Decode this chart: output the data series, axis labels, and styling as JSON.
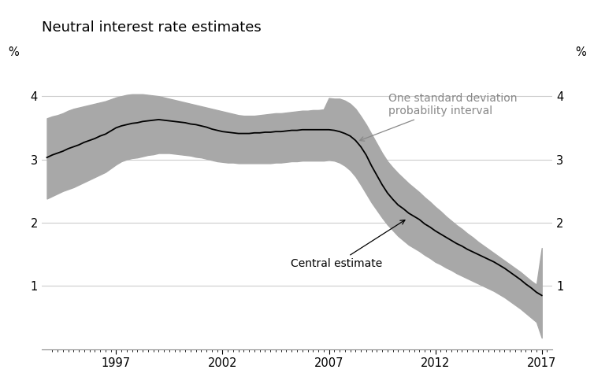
{
  "title": "Neutral interest rate estimates",
  "ylabel_left": "%",
  "ylabel_right": "%",
  "ylim": [
    0,
    4.6
  ],
  "yticks": [
    1,
    2,
    3,
    4
  ],
  "xlim": [
    1993.5,
    2017.5
  ],
  "xticks": [
    1997,
    2002,
    2007,
    2012,
    2017
  ],
  "fill_color": "#a8a8a8",
  "line_color": "#000000",
  "background_color": "#ffffff",
  "annotation_central": "Central estimate",
  "annotation_sd": "One standard deviation\nprobability interval",
  "years": [
    1993.75,
    1994.0,
    1994.25,
    1994.5,
    1994.75,
    1995.0,
    1995.25,
    1995.5,
    1995.75,
    1996.0,
    1996.25,
    1996.5,
    1996.75,
    1997.0,
    1997.25,
    1997.5,
    1997.75,
    1998.0,
    1998.25,
    1998.5,
    1998.75,
    1999.0,
    1999.25,
    1999.5,
    1999.75,
    2000.0,
    2000.25,
    2000.5,
    2000.75,
    2001.0,
    2001.25,
    2001.5,
    2001.75,
    2002.0,
    2002.25,
    2002.5,
    2002.75,
    2003.0,
    2003.25,
    2003.5,
    2003.75,
    2004.0,
    2004.25,
    2004.5,
    2004.75,
    2005.0,
    2005.25,
    2005.5,
    2005.75,
    2006.0,
    2006.25,
    2006.5,
    2006.75,
    2007.0,
    2007.25,
    2007.5,
    2007.75,
    2008.0,
    2008.25,
    2008.5,
    2008.75,
    2009.0,
    2009.25,
    2009.5,
    2009.75,
    2010.0,
    2010.25,
    2010.5,
    2010.75,
    2011.0,
    2011.25,
    2011.5,
    2011.75,
    2012.0,
    2012.25,
    2012.5,
    2012.75,
    2013.0,
    2013.25,
    2013.5,
    2013.75,
    2014.0,
    2014.25,
    2014.5,
    2014.75,
    2015.0,
    2015.25,
    2015.5,
    2015.75,
    2016.0,
    2016.25,
    2016.5,
    2016.75,
    2017.0
  ],
  "central": [
    3.03,
    3.07,
    3.1,
    3.13,
    3.17,
    3.2,
    3.23,
    3.27,
    3.3,
    3.33,
    3.37,
    3.4,
    3.45,
    3.5,
    3.53,
    3.55,
    3.57,
    3.58,
    3.6,
    3.61,
    3.62,
    3.63,
    3.62,
    3.61,
    3.6,
    3.59,
    3.58,
    3.56,
    3.55,
    3.53,
    3.51,
    3.48,
    3.46,
    3.44,
    3.43,
    3.42,
    3.41,
    3.41,
    3.41,
    3.42,
    3.42,
    3.43,
    3.43,
    3.44,
    3.44,
    3.45,
    3.46,
    3.46,
    3.47,
    3.47,
    3.47,
    3.47,
    3.47,
    3.47,
    3.46,
    3.44,
    3.41,
    3.37,
    3.3,
    3.2,
    3.07,
    2.9,
    2.75,
    2.6,
    2.47,
    2.37,
    2.28,
    2.22,
    2.15,
    2.1,
    2.05,
    1.98,
    1.93,
    1.87,
    1.82,
    1.77,
    1.72,
    1.67,
    1.63,
    1.58,
    1.54,
    1.5,
    1.46,
    1.42,
    1.38,
    1.33,
    1.28,
    1.22,
    1.16,
    1.1,
    1.03,
    0.97,
    0.9,
    0.85
  ],
  "upper": [
    3.65,
    3.68,
    3.7,
    3.73,
    3.77,
    3.8,
    3.82,
    3.84,
    3.86,
    3.88,
    3.9,
    3.92,
    3.95,
    3.98,
    4.0,
    4.02,
    4.03,
    4.03,
    4.03,
    4.02,
    4.01,
    4.0,
    3.98,
    3.96,
    3.94,
    3.92,
    3.9,
    3.88,
    3.86,
    3.84,
    3.82,
    3.8,
    3.78,
    3.76,
    3.74,
    3.72,
    3.7,
    3.69,
    3.69,
    3.69,
    3.7,
    3.71,
    3.72,
    3.73,
    3.73,
    3.74,
    3.75,
    3.76,
    3.77,
    3.77,
    3.78,
    3.78,
    3.79,
    3.97,
    3.96,
    3.96,
    3.93,
    3.88,
    3.8,
    3.68,
    3.55,
    3.4,
    3.25,
    3.1,
    2.97,
    2.87,
    2.78,
    2.7,
    2.62,
    2.55,
    2.48,
    2.4,
    2.33,
    2.25,
    2.18,
    2.1,
    2.03,
    1.96,
    1.9,
    1.83,
    1.77,
    1.7,
    1.64,
    1.58,
    1.52,
    1.46,
    1.4,
    1.34,
    1.28,
    1.22,
    1.15,
    1.08,
    1.02,
    1.6
  ],
  "lower": [
    2.38,
    2.42,
    2.46,
    2.5,
    2.53,
    2.56,
    2.6,
    2.64,
    2.68,
    2.72,
    2.76,
    2.8,
    2.86,
    2.92,
    2.97,
    3.0,
    3.02,
    3.03,
    3.05,
    3.07,
    3.08,
    3.1,
    3.1,
    3.1,
    3.09,
    3.08,
    3.07,
    3.06,
    3.04,
    3.03,
    3.01,
    2.99,
    2.97,
    2.96,
    2.95,
    2.95,
    2.94,
    2.94,
    2.94,
    2.94,
    2.94,
    2.94,
    2.94,
    2.95,
    2.95,
    2.96,
    2.97,
    2.97,
    2.98,
    2.98,
    2.98,
    2.98,
    2.98,
    2.99,
    2.98,
    2.95,
    2.9,
    2.83,
    2.73,
    2.6,
    2.46,
    2.32,
    2.2,
    2.08,
    1.97,
    1.88,
    1.79,
    1.72,
    1.65,
    1.6,
    1.55,
    1.49,
    1.44,
    1.38,
    1.34,
    1.29,
    1.25,
    1.2,
    1.16,
    1.12,
    1.08,
    1.04,
    1.0,
    0.96,
    0.92,
    0.87,
    0.82,
    0.76,
    0.7,
    0.64,
    0.57,
    0.5,
    0.43,
    0.18
  ],
  "grid_color": "#cccccc",
  "grid_linewidth": 0.8,
  "spine_color": "#888888"
}
